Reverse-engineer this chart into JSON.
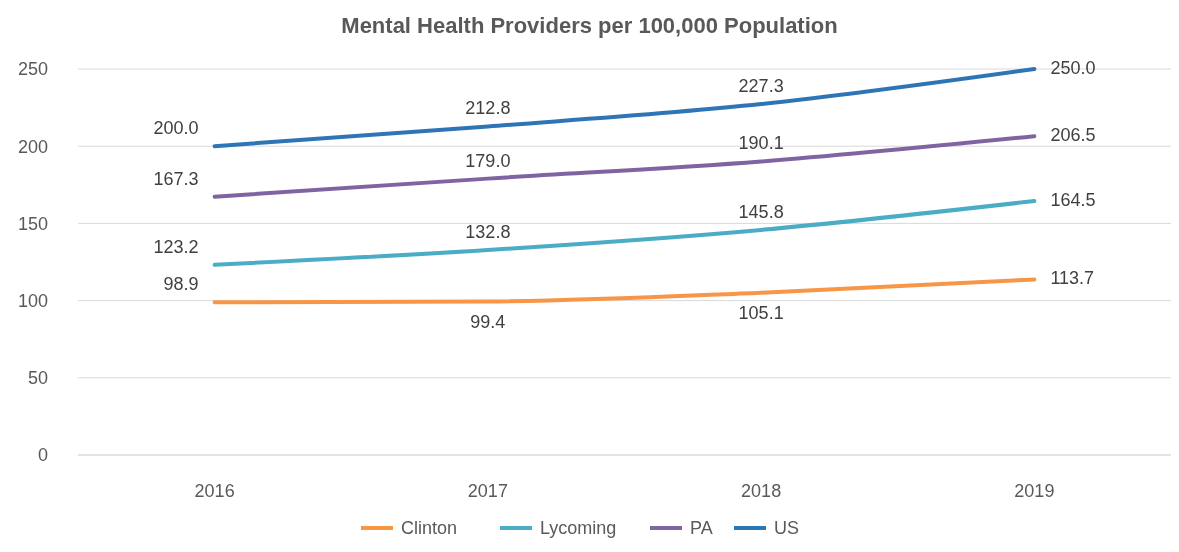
{
  "chart_data": {
    "type": "line",
    "title": "Mental Health Providers per 100,000 Population",
    "categories": [
      "2016",
      "2017",
      "2018",
      "2019"
    ],
    "series": [
      {
        "name": "Clinton",
        "color": "#f79646",
        "values": [
          98.9,
          99.4,
          105.1,
          113.7
        ],
        "value_labels": [
          "98.9",
          "99.4",
          "105.1",
          "113.7"
        ]
      },
      {
        "name": "Lycoming",
        "color": "#4bacc6",
        "values": [
          123.2,
          132.8,
          145.8,
          164.5
        ],
        "value_labels": [
          "123.2",
          "132.8",
          "145.8",
          "164.5"
        ]
      },
      {
        "name": "PA",
        "color": "#8064a2",
        "values": [
          167.3,
          179.0,
          190.1,
          206.5
        ],
        "value_labels": [
          "167.3",
          "179.0",
          "190.1",
          "206.5"
        ]
      },
      {
        "name": "US",
        "color": "#2e75b6",
        "values": [
          200.0,
          212.8,
          227.3,
          250.0
        ],
        "value_labels": [
          "200.0",
          "212.8",
          "227.3",
          "250.0"
        ]
      }
    ],
    "ylim": [
      0,
      250
    ],
    "yticks": [
      0,
      50,
      100,
      150,
      200,
      250
    ],
    "grid": "y",
    "legend": "bottom",
    "marker": "none",
    "line_style": "solid"
  }
}
